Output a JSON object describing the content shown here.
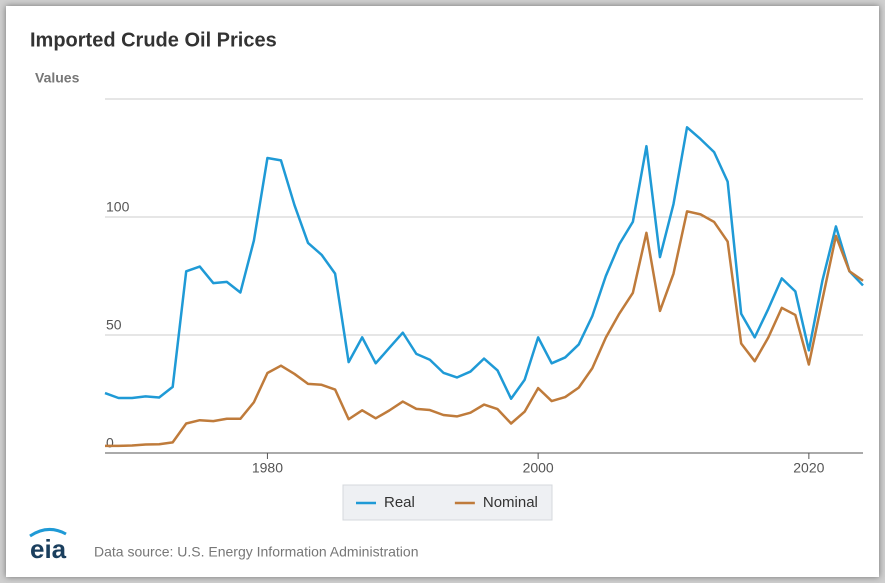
{
  "chart_data": {
    "type": "line",
    "title": "Imported Crude Oil Prices",
    "y_label": "Values",
    "source": "Data source: U.S. Energy Information Administration",
    "logo": "eia",
    "x": [
      1968,
      1969,
      1970,
      1971,
      1972,
      1973,
      1974,
      1975,
      1976,
      1977,
      1978,
      1979,
      1980,
      1981,
      1982,
      1983,
      1984,
      1985,
      1986,
      1987,
      1988,
      1989,
      1990,
      1991,
      1992,
      1993,
      1994,
      1995,
      1996,
      1997,
      1998,
      1999,
      2000,
      2001,
      2002,
      2003,
      2004,
      2005,
      2006,
      2007,
      2008,
      2009,
      2010,
      2011,
      2012,
      2013,
      2014,
      2015,
      2016,
      2017,
      2018,
      2019,
      2020,
      2021,
      2022,
      2023,
      2024
    ],
    "series": [
      {
        "name": "Real",
        "color": "#1f9ad6",
        "values": [
          25.4,
          23.3,
          23.3,
          24,
          23.5,
          28,
          77,
          79,
          72,
          72.5,
          68,
          90,
          125,
          124,
          105,
          89,
          84,
          76,
          38.5,
          49,
          38,
          44.5,
          51,
          42,
          39.5,
          34,
          32,
          34.5,
          40,
          35,
          23,
          31,
          49,
          38,
          40.5,
          46,
          58,
          75,
          88.5,
          98,
          130,
          83,
          105.5,
          138,
          133,
          127.5,
          115,
          59,
          49,
          61,
          74,
          68.5,
          43.5,
          73,
          96,
          77,
          71
        ]
      },
      {
        "name": "Nominal",
        "color": "#bf7b3b",
        "values": [
          3,
          3,
          3.2,
          3.6,
          3.7,
          4.5,
          12.5,
          13.9,
          13.5,
          14.5,
          14.5,
          21.5,
          33.9,
          37,
          33.5,
          29.3,
          28.9,
          26.9,
          14.3,
          18.1,
          14.7,
          18,
          21.8,
          18.7,
          18.2,
          16.1,
          15.5,
          17.1,
          20.5,
          18.6,
          12.5,
          17.5,
          27.5,
          22,
          23.7,
          27.7,
          35.9,
          48.9,
          59.1,
          67.9,
          93.3,
          60.2,
          76,
          102.4,
          101.1,
          97.9,
          89.6,
          46.4,
          38.9,
          48.9,
          61.5,
          58.5,
          37.5,
          65,
          92,
          77,
          73
        ]
      }
    ],
    "xlim": [
      1968,
      2024
    ],
    "xticks": [
      1980,
      2000,
      2020
    ],
    "ylim": [
      0,
      150
    ],
    "yticks": [
      0,
      50,
      100
    ],
    "grid": true,
    "legend": "bottom"
  }
}
